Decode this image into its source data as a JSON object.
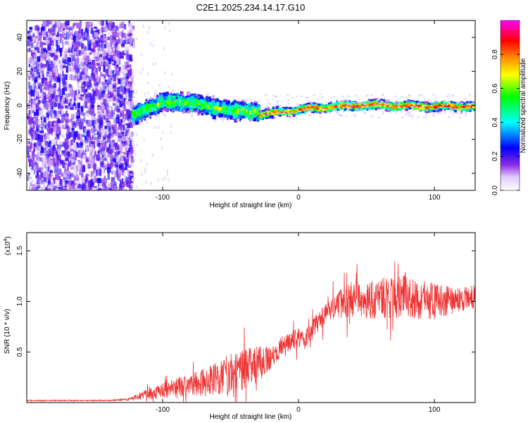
{
  "title": "C2E1.2025.234.14.17.G10",
  "chart_data": [
    {
      "type": "heatmap",
      "title": "C2E1.2025.234.14.17.G10",
      "xlabel": "Height of straight line (km)",
      "ylabel": "Frequency (Hz)",
      "xlim": [
        -200,
        130
      ],
      "ylim": [
        -50,
        50
      ],
      "xticks": [
        -100,
        0,
        100
      ],
      "yticks": [
        -40,
        -20,
        0,
        20,
        40
      ],
      "grid": false,
      "colorbar": {
        "label": "Normalized spectral amplitude",
        "range": [
          0,
          1
        ],
        "ticks": [
          0.0,
          0.2,
          0.4,
          0.6,
          0.8
        ],
        "tick_labels": [
          "0.0",
          "0.2",
          "0.4",
          "0.6",
          "0.8"
        ],
        "colormap": [
          "#ffffff",
          "#8a2be2",
          "#0000ff",
          "#00ffff",
          "#00ff00",
          "#ffff00",
          "#ff8c00",
          "#ff0000",
          "#ff00ff"
        ]
      },
      "regions": [
        {
          "name": "noise",
          "x_range": [
            -200,
            -123
          ],
          "freq_range": [
            -50,
            50
          ],
          "amplitude": [
            0.05,
            0.25
          ]
        },
        {
          "name": "signal-broad",
          "x_range": [
            -123,
            -30
          ],
          "center_freq": [
            -5,
            3,
            2,
            -2,
            -3
          ],
          "width_hz": 8,
          "amplitude": [
            0.2,
            0.6
          ]
        },
        {
          "name": "signal-narrow",
          "x_range": [
            -30,
            130
          ],
          "center_freq": [
            -5,
            -1,
            1,
            0,
            0
          ],
          "width_hz": 3,
          "amplitude": [
            0.6,
            0.9
          ]
        }
      ]
    },
    {
      "type": "line",
      "xlabel": "Height of straight line (km)",
      "ylabel": "SNR (10 * v/v)",
      "y_scale_label_base": "(x10",
      "y_scale_label_exp": "4",
      "y_scale_label_end": ")",
      "xlim": [
        -200,
        130
      ],
      "ylim": [
        0,
        1.68
      ],
      "xticks": [
        -100,
        0,
        100
      ],
      "yticks": [
        0.5,
        1.0,
        1.5
      ],
      "ytick_labels": [
        "0.5",
        "1.0",
        "1.5"
      ],
      "series": [
        {
          "name": "SNR",
          "color": "#ee3333",
          "x": [
            -200,
            -180,
            -160,
            -140,
            -125,
            -118,
            -112,
            -100,
            -90,
            -80,
            -70,
            -60,
            -50,
            -40,
            -30,
            -20,
            -10,
            0,
            5,
            10,
            20,
            30,
            40,
            50,
            60,
            70,
            80,
            90,
            100,
            110,
            120,
            130
          ],
          "values": [
            0.02,
            0.02,
            0.02,
            0.02,
            0.03,
            0.06,
            0.08,
            0.12,
            0.14,
            0.17,
            0.2,
            0.24,
            0.29,
            0.33,
            0.38,
            0.45,
            0.58,
            0.65,
            0.62,
            0.72,
            0.88,
            0.98,
            1.02,
            1.03,
            1.03,
            1.05,
            1.05,
            1.0,
            1.02,
            1.0,
            1.02,
            1.05
          ],
          "noise_amplitude": [
            0.005,
            0.005,
            0.005,
            0.005,
            0.01,
            0.03,
            0.05,
            0.08,
            0.1,
            0.12,
            0.14,
            0.17,
            0.2,
            0.2,
            0.18,
            0.12,
            0.1,
            0.1,
            0.1,
            0.1,
            0.12,
            0.15,
            0.18,
            0.2,
            0.2,
            0.22,
            0.22,
            0.2,
            0.18,
            0.15,
            0.12,
            0.12
          ]
        }
      ]
    }
  ]
}
